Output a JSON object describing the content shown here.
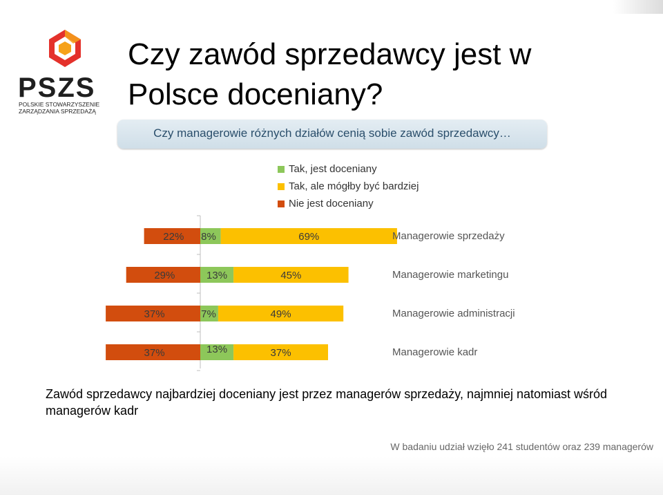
{
  "title": "Czy zawód sprzedawcy jest w Polsce doceniany?",
  "subtitle": "Czy managerowie różnych działów cenią sobie zawód sprzedawcy…",
  "logo": {
    "text": "PSZS",
    "org_line1": "POLSKIE STOWARZYSZENIE",
    "org_line2": "ZARZĄDZANIA SPRZEDAŻĄ",
    "colors": [
      "#e4312b",
      "#f6a21a",
      "#4a4a4a"
    ]
  },
  "colors": {
    "green": "#8dc75a",
    "yellow": "#fcc000",
    "orange": "#d24d0e",
    "subtitle_text": "#2a4e6b"
  },
  "chart_data": {
    "type": "bar",
    "orientation": "horizontal",
    "stacking": "diverging",
    "categories": [
      "Managerowie sprzedaży",
      "Managerowie marketingu",
      "Managerowie administracji",
      "Managerowie kadr"
    ],
    "series": [
      {
        "name": "Tak, jest doceniany",
        "color": "#8dc75a",
        "values": [
          8,
          13,
          7,
          13
        ]
      },
      {
        "name": "Tak, ale mógłby być bardziej",
        "color": "#fcc000",
        "values": [
          69,
          45,
          49,
          37
        ]
      },
      {
        "name": "Nie jest doceniany",
        "color": "#d24d0e",
        "values": [
          22,
          29,
          37,
          37
        ]
      }
    ],
    "value_unit": "%",
    "legend_position": "top"
  },
  "conclusion": "Zawód sprzedawcy najbardziej doceniany jest przez managerów sprzedaży, najmniej natomiast wśród managerów kadr",
  "footnote": "W badaniu udział wzięło 241 studentów oraz 239 managerów"
}
